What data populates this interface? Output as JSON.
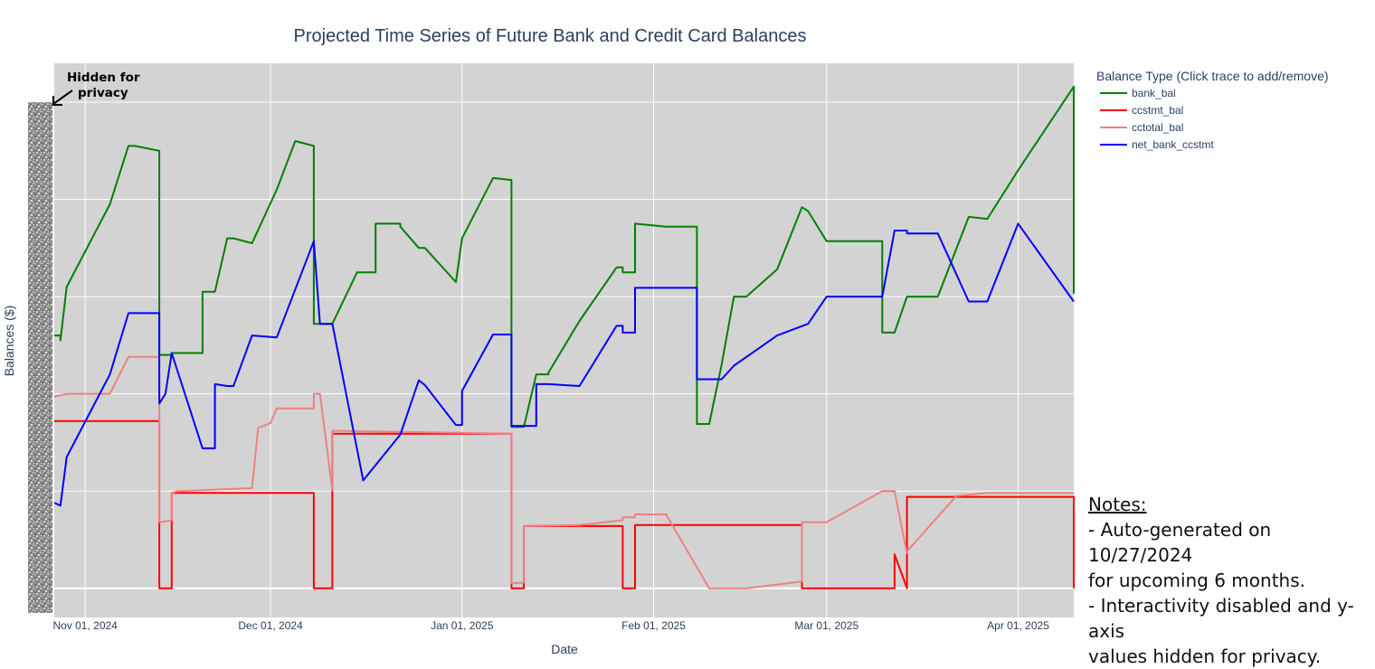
{
  "chart_data": {
    "type": "line",
    "title": "Projected Time Series of Future Bank and Credit Card Balances",
    "xlabel": "Date",
    "ylabel": "Balances ($)",
    "y_values_hidden": true,
    "x_ticks": [
      "2024-11-01",
      "2024-12-01",
      "2025-01-01",
      "2025-02-01",
      "2025-03-01",
      "2025-04-01"
    ],
    "x_tick_labels": [
      "Nov 01, 2024",
      "Dec 01, 2024",
      "Jan 01, 2025",
      "Feb 01, 2025",
      "Mar 01, 2025",
      "Apr 01, 2025"
    ],
    "xlim": [
      "2024-10-27",
      "2025-04-10"
    ],
    "ylim": [
      -0.3,
      5.4
    ],
    "y_gridlines": [
      0,
      1,
      2,
      3,
      4,
      5
    ],
    "grid": true,
    "plot_bg": "#d3d3d3",
    "legend": {
      "title": "Balance Type (Click trace to add/remove)",
      "placement": "right"
    },
    "series": [
      {
        "name": "bank_bal",
        "color": "#008000",
        "x": [
          "2024-10-27",
          "2024-10-28",
          "2024-10-28",
          "2024-10-29",
          "2024-11-05",
          "2024-11-08",
          "2024-11-09",
          "2024-11-13",
          "2024-11-13",
          "2024-11-15",
          "2024-11-15",
          "2024-11-20",
          "2024-11-20",
          "2024-11-22",
          "2024-11-24",
          "2024-11-25",
          "2024-11-28",
          "2024-11-28",
          "2024-12-02",
          "2024-12-05",
          "2024-12-08",
          "2024-12-08",
          "2024-12-09",
          "2024-12-09",
          "2024-12-11",
          "2024-12-15",
          "2024-12-18",
          "2024-12-18",
          "2024-12-22",
          "2024-12-22",
          "2024-12-25",
          "2024-12-26",
          "2024-12-31",
          "2025-01-01",
          "2025-01-01",
          "2025-01-06",
          "2025-01-09",
          "2025-01-09",
          "2025-01-11",
          "2025-01-11",
          "2025-01-13",
          "2025-01-15",
          "2025-01-15",
          "2025-01-20",
          "2025-01-20",
          "2025-01-26",
          "2025-01-27",
          "2025-01-27",
          "2025-01-29",
          "2025-01-29",
          "2025-02-03",
          "2025-02-08",
          "2025-02-08",
          "2025-02-10",
          "2025-02-12",
          "2025-02-12",
          "2025-02-14",
          "2025-02-14",
          "2025-02-16",
          "2025-02-21",
          "2025-02-25",
          "2025-02-25",
          "2025-02-26",
          "2025-02-26",
          "2025-03-01",
          "2025-03-10",
          "2025-03-10",
          "2025-03-12",
          "2025-03-12",
          "2025-03-14",
          "2025-03-19",
          "2025-03-24",
          "2025-03-24",
          "2025-03-27",
          "2025-03-27",
          "2025-04-01",
          "2025-04-01",
          "2025-04-10",
          "2025-04-10"
        ],
        "y": [
          2.6,
          2.6,
          2.55,
          3.1,
          3.95,
          4.55,
          4.55,
          4.5,
          2.4,
          2.4,
          2.42,
          2.42,
          3.05,
          3.05,
          3.6,
          3.6,
          3.55,
          3.55,
          4.1,
          4.6,
          4.55,
          2.72,
          2.72,
          2.72,
          2.72,
          3.25,
          3.25,
          3.75,
          3.75,
          3.72,
          3.5,
          3.5,
          3.15,
          3.6,
          3.6,
          4.22,
          4.2,
          1.66,
          1.66,
          1.66,
          2.2,
          2.2,
          2.22,
          2.75,
          2.75,
          3.3,
          3.3,
          3.25,
          3.25,
          3.75,
          3.72,
          3.72,
          1.69,
          1.69,
          2.3,
          2.3,
          3.0,
          3.0,
          3.0,
          3.28,
          3.92,
          3.92,
          3.88,
          3.88,
          3.57,
          3.57,
          2.63,
          2.63,
          2.63,
          3.0,
          3.0,
          3.82,
          3.82,
          3.8,
          3.8,
          4.3,
          4.3,
          5.16,
          3.03
        ]
      },
      {
        "name": "ccstmt_bal",
        "color": "#ff0000",
        "x": [
          "2024-10-27",
          "2024-11-13",
          "2024-11-13",
          "2024-11-15",
          "2024-11-15",
          "2024-12-08",
          "2024-12-08",
          "2024-12-09",
          "2024-12-09",
          "2024-12-11",
          "2024-12-11",
          "2025-01-09",
          "2025-01-09",
          "2025-01-11",
          "2025-01-11",
          "2025-01-27",
          "2025-01-27",
          "2025-01-29",
          "2025-01-29",
          "2025-02-25",
          "2025-02-25",
          "2025-02-26",
          "2025-02-26",
          "2025-03-12",
          "2025-03-12",
          "2025-03-14",
          "2025-03-14",
          "2025-04-10",
          "2025-04-10"
        ],
        "y": [
          1.72,
          1.72,
          0.0,
          0.0,
          0.98,
          0.98,
          0.0,
          0.0,
          0.0,
          0.0,
          1.59,
          1.59,
          0.0,
          0.0,
          0.64,
          0.64,
          0.0,
          0.0,
          0.65,
          0.65,
          0.0,
          0.0,
          0.0,
          0.0,
          0.35,
          0.0,
          0.94,
          0.94,
          0.0
        ]
      },
      {
        "name": "cctotal_bal",
        "color": "#f08080",
        "x": [
          "2024-10-27",
          "2024-10-29",
          "2024-11-05",
          "2024-11-08",
          "2024-11-10",
          "2024-11-13",
          "2024-11-13",
          "2024-11-15",
          "2024-11-15",
          "2024-11-16",
          "2024-11-28",
          "2024-11-29",
          "2024-11-29",
          "2024-12-01",
          "2024-12-02",
          "2024-12-08",
          "2024-12-08",
          "2024-12-09",
          "2024-12-09",
          "2024-12-11",
          "2024-12-11",
          "2025-01-09",
          "2025-01-09",
          "2025-01-11",
          "2025-01-11",
          "2025-01-20",
          "2025-01-27",
          "2025-01-27",
          "2025-01-29",
          "2025-01-29",
          "2025-02-03",
          "2025-02-10",
          "2025-02-16",
          "2025-02-25",
          "2025-02-25",
          "2025-03-01",
          "2025-03-10",
          "2025-03-12",
          "2025-03-12",
          "2025-03-14",
          "2025-03-14",
          "2025-03-22",
          "2025-03-27",
          "2025-04-10"
        ],
        "y": [
          1.97,
          2.0,
          2.0,
          2.38,
          2.38,
          2.38,
          0.68,
          0.7,
          0.98,
          1.0,
          1.03,
          1.65,
          1.65,
          1.7,
          1.85,
          1.85,
          2.0,
          2.0,
          2.0,
          1.01,
          1.62,
          1.59,
          0.05,
          0.06,
          0.64,
          0.65,
          0.7,
          0.73,
          0.73,
          0.76,
          0.76,
          0.0,
          0.0,
          0.07,
          0.68,
          0.68,
          1.0,
          1.0,
          1.0,
          0.36,
          0.38,
          0.95,
          0.98,
          0.98
        ]
      },
      {
        "name": "net_bank_ccstmt",
        "color": "#0000ff",
        "x": [
          "2024-10-27",
          "2024-10-28",
          "2024-10-29",
          "2024-11-05",
          "2024-11-08",
          "2024-11-13",
          "2024-11-13",
          "2024-11-14",
          "2024-11-15",
          "2024-11-15",
          "2024-11-20",
          "2024-11-22",
          "2024-11-22",
          "2024-11-24",
          "2024-11-25",
          "2024-11-28",
          "2024-12-02",
          "2024-12-08",
          "2024-12-08",
          "2024-12-09",
          "2024-12-11",
          "2024-12-11",
          "2024-12-16",
          "2024-12-16",
          "2024-12-22",
          "2024-12-22",
          "2024-12-25",
          "2024-12-25",
          "2024-12-26",
          "2024-12-26",
          "2024-12-31",
          "2025-01-01",
          "2025-01-01",
          "2025-01-06",
          "2025-01-09",
          "2025-01-09",
          "2025-01-11",
          "2025-01-13",
          "2025-01-13",
          "2025-01-15",
          "2025-01-15",
          "2025-01-20",
          "2025-01-26",
          "2025-01-27",
          "2025-01-27",
          "2025-01-29",
          "2025-01-29",
          "2025-01-29",
          "2025-02-03",
          "2025-02-08",
          "2025-02-08",
          "2025-02-10",
          "2025-02-12",
          "2025-02-12",
          "2025-02-14",
          "2025-02-21",
          "2025-02-26",
          "2025-02-26",
          "2025-03-01",
          "2025-03-10",
          "2025-03-12",
          "2025-03-12",
          "2025-03-14",
          "2025-03-14",
          "2025-03-19",
          "2025-03-24",
          "2025-03-24",
          "2025-03-27",
          "2025-03-27",
          "2025-04-01",
          "2025-04-01",
          "2025-04-10",
          "2025-04-10"
        ],
        "y": [
          0.88,
          0.85,
          1.35,
          2.2,
          2.83,
          2.83,
          1.9,
          2.0,
          2.42,
          2.42,
          1.44,
          1.44,
          2.1,
          2.08,
          2.08,
          2.6,
          2.58,
          3.57,
          3.57,
          2.72,
          2.72,
          2.72,
          1.11,
          1.11,
          1.58,
          1.58,
          2.14,
          2.14,
          2.09,
          2.09,
          1.68,
          1.68,
          2.03,
          2.61,
          2.61,
          1.67,
          1.67,
          1.67,
          2.1,
          2.1,
          2.1,
          2.08,
          2.7,
          2.7,
          2.63,
          2.63,
          2.63,
          3.09,
          3.09,
          3.09,
          2.15,
          2.15,
          2.15,
          2.15,
          2.29,
          2.6,
          2.72,
          2.72,
          3.0,
          3.0,
          3.68,
          3.68,
          3.68,
          3.65,
          3.65,
          2.95,
          2.95,
          2.95,
          2.95,
          3.75,
          3.75,
          2.95,
          2.95
        ]
      }
    ],
    "annotation": "Hidden for privacy",
    "notes": {
      "title": "Notes:",
      "lines": [
        "- Auto-generated on 10/27/2024",
        "for upcoming 6 months.",
        "- Interactivity disabled and y-axis",
        "values hidden for privacy."
      ]
    }
  }
}
